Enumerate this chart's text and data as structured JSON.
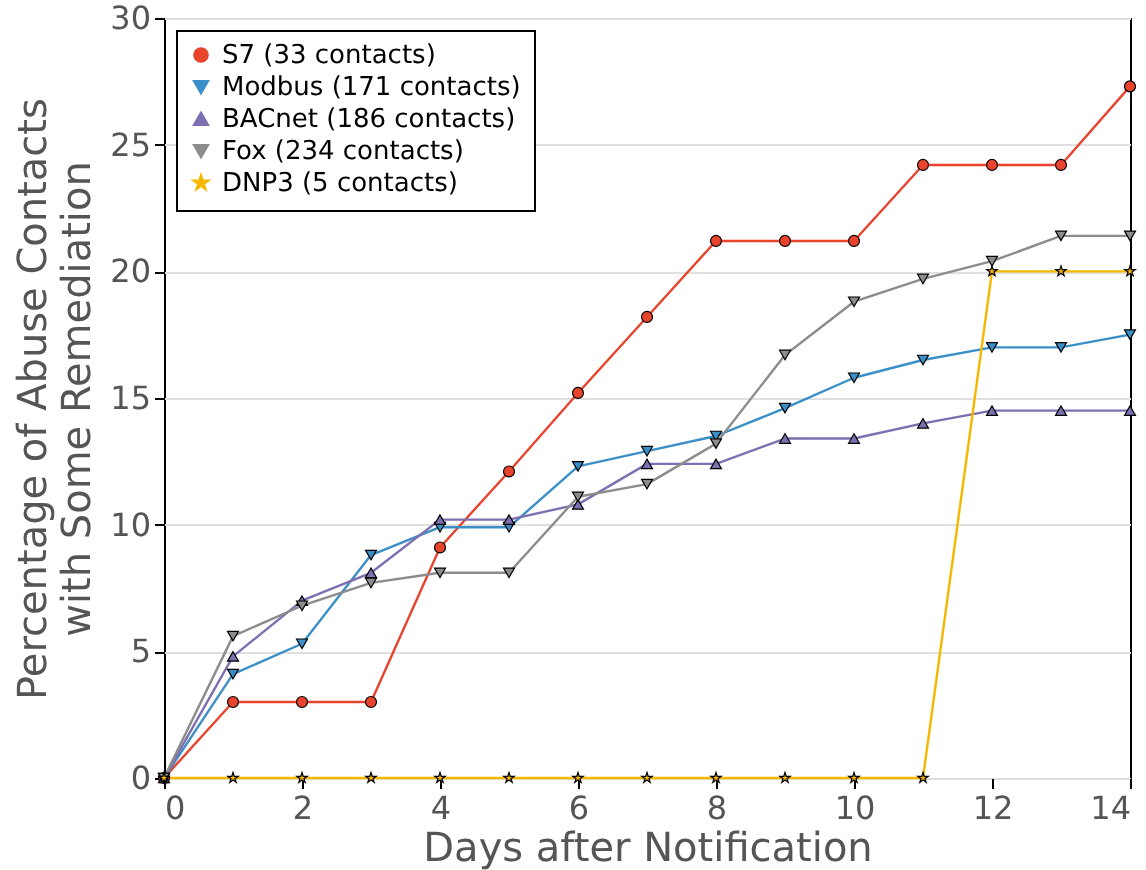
{
  "chart_data": {
    "type": "line",
    "xlabel": "Days after Notification",
    "ylabel": "Percentage of Abuse Contacts\nwith Some Remediation",
    "x": [
      0,
      1,
      2,
      3,
      4,
      5,
      6,
      7,
      8,
      9,
      10,
      11,
      12,
      13,
      14
    ],
    "xlim": [
      0,
      14
    ],
    "xticks": [
      0,
      2,
      4,
      6,
      8,
      10,
      12,
      14
    ],
    "ylim": [
      0,
      30
    ],
    "yticks": [
      0,
      5,
      10,
      15,
      20,
      25,
      30
    ],
    "grid": "y",
    "legend": "top left",
    "series": [
      {
        "name": "S7 (33 contacts)",
        "color": "#e8432d",
        "marker": "circle",
        "values": [
          0,
          3,
          3,
          3,
          9.1,
          12.1,
          15.2,
          18.2,
          21.2,
          21.2,
          21.2,
          24.2,
          24.2,
          24.2,
          27.3
        ]
      },
      {
        "name": "Modbus (171 contacts)",
        "color": "#3a8fc6",
        "marker": "triangle-down",
        "values": [
          0,
          4.1,
          5.3,
          8.8,
          9.9,
          9.9,
          12.3,
          12.9,
          13.5,
          14.6,
          15.8,
          16.5,
          17,
          17,
          17.5
        ]
      },
      {
        "name": "BACnet (186 contacts)",
        "color": "#7e6fb1",
        "marker": "triangle-up",
        "values": [
          0,
          4.8,
          7,
          8.1,
          10.2,
          10.2,
          10.8,
          12.4,
          12.4,
          13.4,
          13.4,
          14,
          14.5,
          14.5,
          14.5
        ]
      },
      {
        "name": "Fox (234 contacts)",
        "color": "#8c8c8c",
        "marker": "triangle-down",
        "values": [
          0,
          5.6,
          6.8,
          7.7,
          8.1,
          8.1,
          11.1,
          11.6,
          13.2,
          16.7,
          18.8,
          19.7,
          20.4,
          21.4,
          21.4
        ]
      },
      {
        "name": "DNP3 (5 contacts)",
        "color": "#f5b800",
        "marker": "star",
        "values": [
          0,
          0,
          0,
          0,
          0,
          0,
          0,
          0,
          0,
          0,
          0,
          0,
          20,
          20,
          20
        ]
      }
    ]
  }
}
